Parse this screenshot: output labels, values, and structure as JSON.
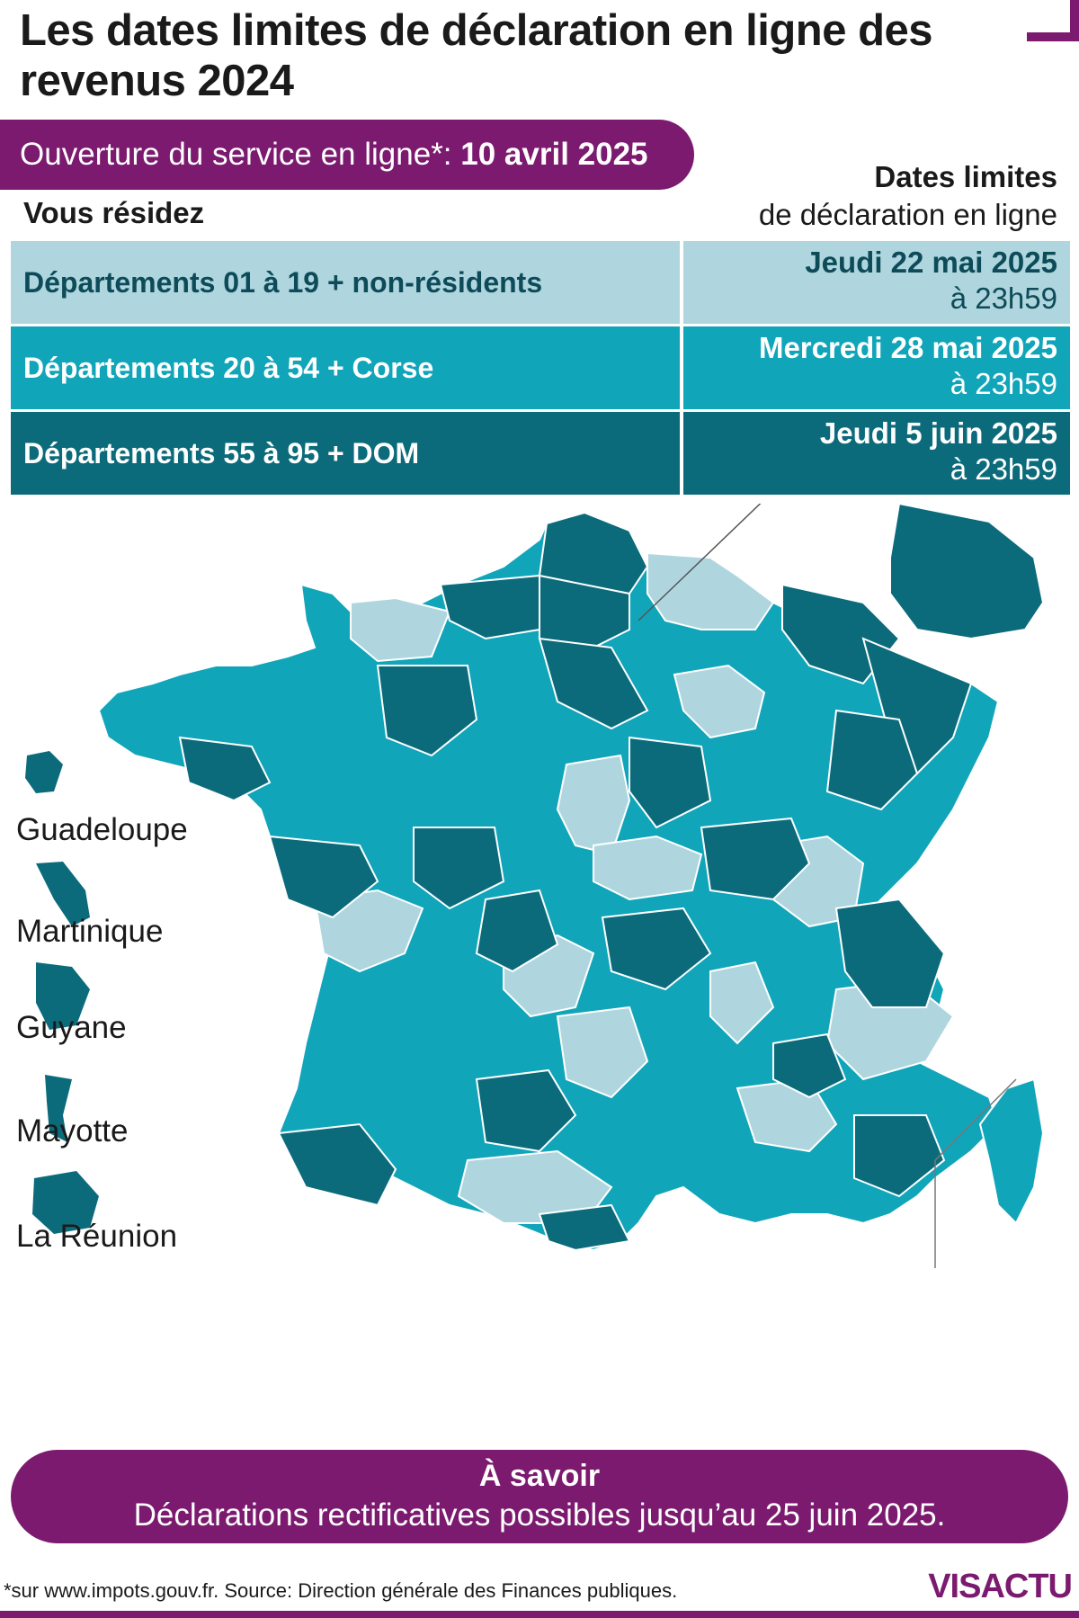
{
  "title": "Les dates limites de déclaration en ligne des revenus 2024",
  "opening": {
    "label": "Ouverture du service en ligne*: ",
    "date": "10 avril 2025"
  },
  "columns": {
    "left": "Vous résidez",
    "right_line1": "Dates limites",
    "right_line2": "de déclaration en ligne"
  },
  "rows": [
    {
      "zone": "Départements 01 à 19 + non-résidents",
      "date": "Jeudi 22 mai 2025",
      "time": "à 23h59",
      "color": "#afd6df"
    },
    {
      "zone": "Départements 20 à 54 + Corse",
      "date": "Mercredi 28 mai 2025",
      "time": "à 23h59",
      "color": "#11a5ba"
    },
    {
      "zone": "Départements 55 à 95 + DOM",
      "date": "Jeudi 5 juin 2025",
      "time": "à 23h59",
      "color": "#0c6b7b"
    }
  ],
  "overseas": [
    "Guadeloupe",
    "Martinique",
    "Guyane",
    "Mayotte",
    "La Réunion"
  ],
  "notice": {
    "title": "À savoir",
    "text": "Déclarations rectificatives possibles jusqu’au 25 juin 2025."
  },
  "footnote": "*sur www.impots.gouv.fr. Source: Direction générale des Finances publiques.",
  "logo": "VISACTU",
  "colors": {
    "accent": "#7b1a6f",
    "zone1": "#afd6df",
    "zone2": "#11a5ba",
    "zone3": "#0c6b7b"
  }
}
